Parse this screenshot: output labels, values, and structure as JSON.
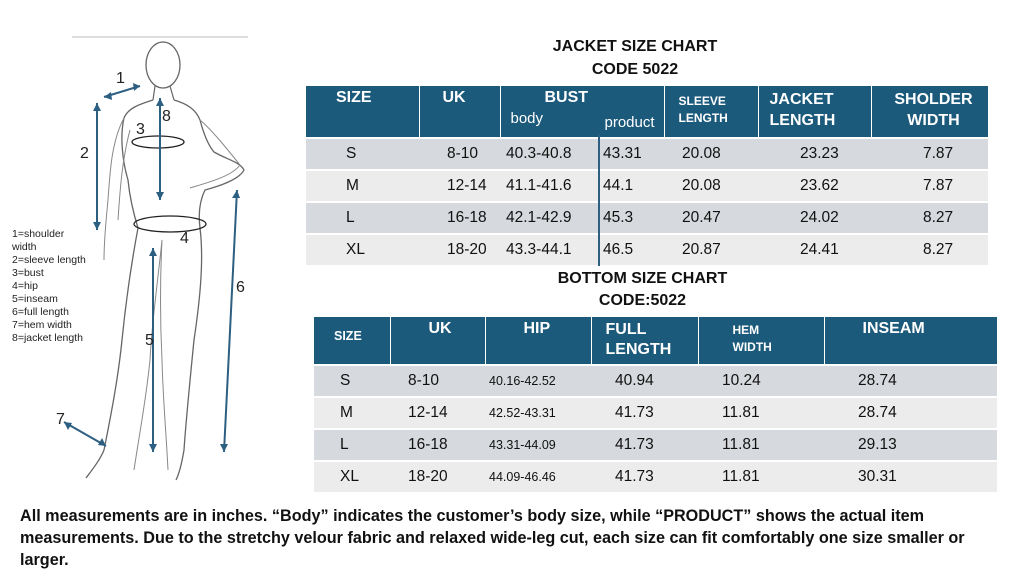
{
  "figure": {
    "labels": [
      "1",
      "2",
      "3",
      "8",
      "4",
      "5",
      "6",
      "7"
    ],
    "legend": [
      "1=shoulder",
      "width",
      "2=sleeve length",
      "3=bust",
      "4=hip",
      "5=inseam",
      "6=full length",
      "7=hem width",
      "8=jacket length"
    ]
  },
  "jacket": {
    "title1": "JACKET SIZE CHART",
    "title2": "CODE 5022",
    "headers": {
      "size": "SIZE",
      "uk": "UK",
      "bust": "BUST",
      "body": "body",
      "product": "product",
      "sleeve1": "SLEEVE",
      "sleeve2": "LENGTH",
      "jacket1": "JACKET",
      "jacket2": "LENGTH",
      "shoulder1": "SHOLDER",
      "shoulder2": "WIDTH"
    },
    "rows": [
      [
        "S",
        "8-10",
        "40.3-40.8",
        "43.31",
        "20.08",
        "23.23",
        "7.87"
      ],
      [
        "M",
        "12-14",
        "41.1-41.6",
        "44.1",
        "20.08",
        "23.62",
        "7.87"
      ],
      [
        "L",
        "16-18",
        "42.1-42.9",
        "45.3",
        "20.47",
        "24.02",
        "8.27"
      ],
      [
        "XL",
        "18-20",
        "43.3-44.1",
        "46.5",
        "20.87",
        "24.41",
        "8.27"
      ]
    ]
  },
  "bottom": {
    "title1": "BOTTOM SIZE CHART",
    "title2": "CODE:5022",
    "headers": {
      "size": "SIZE",
      "uk": "UK",
      "hip": "HIP",
      "full1": "FULL",
      "full2": "LENGTH",
      "hem1": "HEM",
      "hem2": "WIDTH",
      "inseam": "INSEAM"
    },
    "rows": [
      [
        "S",
        "8-10",
        "40.16-42.52",
        "40.94",
        "10.24",
        "28.74"
      ],
      [
        "M",
        "12-14",
        "42.52-43.31",
        "41.73",
        "11.81",
        "28.74"
      ],
      [
        "L",
        "16-18",
        "43.31-44.09",
        "41.73",
        "11.81",
        "29.13"
      ],
      [
        "XL",
        "18-20",
        "44.09-46.46",
        "41.73",
        "11.81",
        "30.31"
      ]
    ]
  },
  "note": "All measurements are in inches. “Body” indicates the customer’s body size, while “PRODUCT” shows the actual item measurements. Due to the stretchy velour fabric and relaxed wide-leg cut, each size can fit comfortably one size smaller or larger.",
  "colors": {
    "header": "#1c5a7c",
    "row_odd": "#d6d9dd",
    "row_even": "#ececec",
    "arrow": "#2d5f82"
  }
}
